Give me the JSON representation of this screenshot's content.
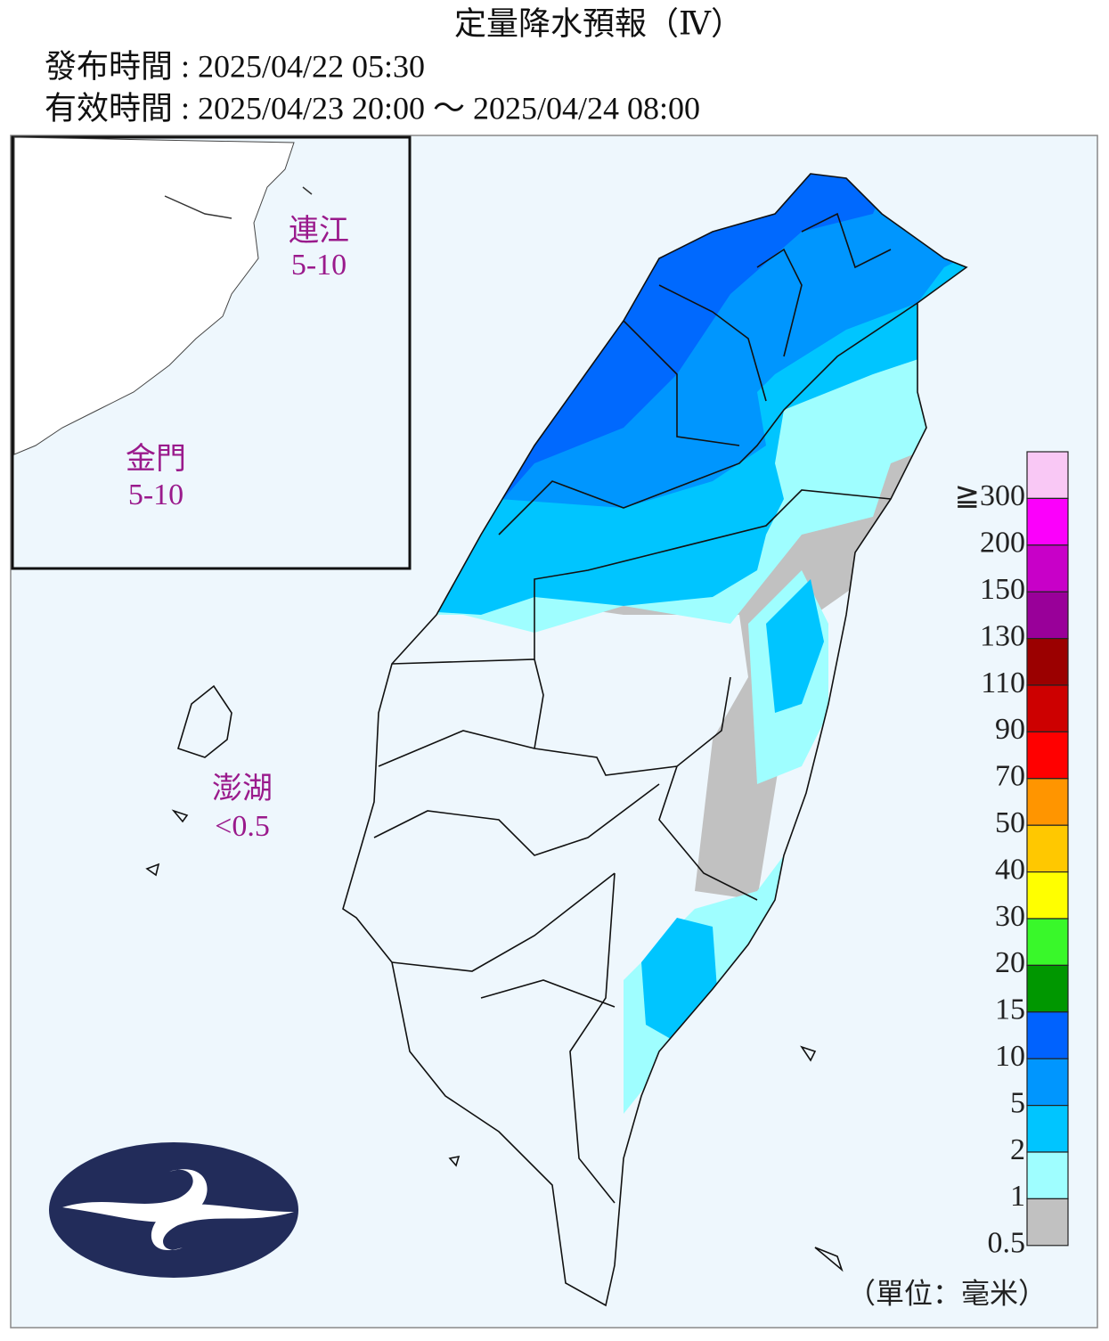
{
  "header": {
    "title": "定量降水預報（Ⅳ）",
    "issued": "發布時間 : 2025/04/22 05:30",
    "valid": "有效時間 : 2025/04/23 20:00 ～ 2025/04/24 08:00"
  },
  "regions": [
    {
      "name": "連江",
      "range": "5-10"
    },
    {
      "name": "金門",
      "range": "5-10"
    },
    {
      "name": "澎湖",
      "range": "<0.5"
    }
  ],
  "legend": {
    "unit": "（單位：毫米）",
    "items": [
      {
        "label": "≧300",
        "color": "#f9c8f5"
      },
      {
        "label": "200",
        "color": "#fb00fb"
      },
      {
        "label": "150",
        "color": "#c800c8"
      },
      {
        "label": "130",
        "color": "#990099"
      },
      {
        "label": "110",
        "color": "#9b0000"
      },
      {
        "label": "90",
        "color": "#cd0000"
      },
      {
        "label": "70",
        "color": "#ff0000"
      },
      {
        "label": "50",
        "color": "#ff9500"
      },
      {
        "label": "40",
        "color": "#ffc800"
      },
      {
        "label": "30",
        "color": "#ffff00"
      },
      {
        "label": "20",
        "color": "#39f82a"
      },
      {
        "label": "15",
        "color": "#009700"
      },
      {
        "label": "10",
        "color": "#0062fe"
      },
      {
        "label": "5",
        "color": "#0096fe"
      },
      {
        "label": "2",
        "color": "#00c5ff"
      },
      {
        "label": "1",
        "color": "#9ffeff"
      },
      {
        "label": "0.5",
        "color": "#c1c1c1"
      }
    ]
  }
}
